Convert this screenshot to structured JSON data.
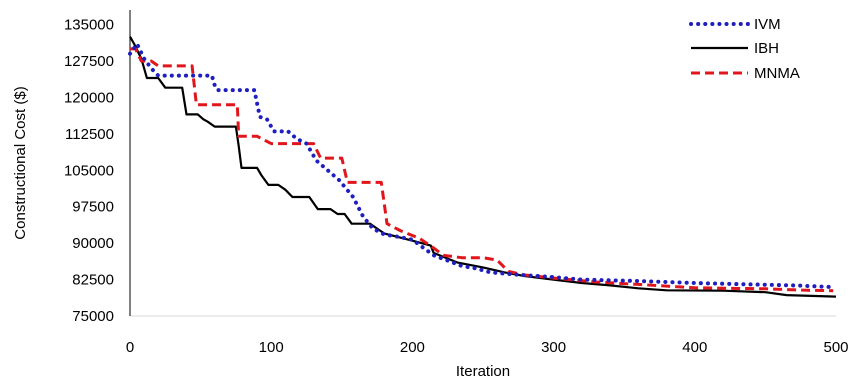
{
  "chart_data": {
    "type": "line",
    "title": "",
    "xlabel": "Iteration",
    "ylabel": "Constructional Cost ($)",
    "xlim": [
      0,
      500
    ],
    "ylim": [
      75000,
      138000
    ],
    "x_ticks": [
      0,
      100,
      200,
      300,
      400,
      500
    ],
    "y_ticks": [
      75000,
      82500,
      90000,
      97500,
      105000,
      112500,
      120000,
      127500,
      135000
    ],
    "x_tick_labels": [
      "0",
      "100",
      "200",
      "300",
      "400",
      "500"
    ],
    "y_tick_labels": [
      "75000",
      "82500",
      "90000",
      "97500",
      "105000",
      "112500",
      "120000",
      "127500",
      "135000"
    ],
    "grid": false,
    "legend_position": "top-right",
    "series": [
      {
        "name": "IVM",
        "color": "#1f1fbf",
        "style": "dotted",
        "points": [
          [
            0,
            129000
          ],
          [
            5,
            131000
          ],
          [
            10,
            128000
          ],
          [
            15,
            126000
          ],
          [
            20,
            124500
          ],
          [
            58,
            124500
          ],
          [
            60,
            122500
          ],
          [
            62,
            121500
          ],
          [
            88,
            121500
          ],
          [
            92,
            116000
          ],
          [
            97,
            115500
          ],
          [
            102,
            113000
          ],
          [
            112,
            113000
          ],
          [
            118,
            111500
          ],
          [
            125,
            110500
          ],
          [
            132,
            107000
          ],
          [
            140,
            105000
          ],
          [
            148,
            103000
          ],
          [
            158,
            99500
          ],
          [
            165,
            95500
          ],
          [
            172,
            93000
          ],
          [
            180,
            91800
          ],
          [
            190,
            91300
          ],
          [
            200,
            90700
          ],
          [
            215,
            87500
          ],
          [
            225,
            86400
          ],
          [
            235,
            85300
          ],
          [
            245,
            84800
          ],
          [
            255,
            84000
          ],
          [
            270,
            83600
          ],
          [
            285,
            83300
          ],
          [
            300,
            83000
          ],
          [
            320,
            82500
          ],
          [
            360,
            82200
          ],
          [
            400,
            81800
          ],
          [
            440,
            81500
          ],
          [
            470,
            81300
          ],
          [
            495,
            81000
          ]
        ]
      },
      {
        "name": "IBH",
        "color": "#000000",
        "style": "solid",
        "points": [
          [
            0,
            132500
          ],
          [
            3,
            131000
          ],
          [
            8,
            128000
          ],
          [
            12,
            124000
          ],
          [
            20,
            124000
          ],
          [
            25,
            122000
          ],
          [
            37,
            122000
          ],
          [
            40,
            116500
          ],
          [
            48,
            116500
          ],
          [
            52,
            115500
          ],
          [
            55,
            115000
          ],
          [
            60,
            114000
          ],
          [
            75,
            114000
          ],
          [
            77,
            110000
          ],
          [
            79,
            105500
          ],
          [
            90,
            105500
          ],
          [
            93,
            104000
          ],
          [
            98,
            102000
          ],
          [
            105,
            102000
          ],
          [
            110,
            101000
          ],
          [
            115,
            99500
          ],
          [
            127,
            99500
          ],
          [
            133,
            97000
          ],
          [
            142,
            97000
          ],
          [
            147,
            96000
          ],
          [
            152,
            96000
          ],
          [
            157,
            94000
          ],
          [
            170,
            94000
          ],
          [
            175,
            93000
          ],
          [
            180,
            92000
          ],
          [
            200,
            90500
          ],
          [
            213,
            89500
          ],
          [
            215,
            88000
          ],
          [
            232,
            86000
          ],
          [
            250,
            85000
          ],
          [
            265,
            84000
          ],
          [
            280,
            83200
          ],
          [
            300,
            82500
          ],
          [
            320,
            81800
          ],
          [
            340,
            81300
          ],
          [
            360,
            80700
          ],
          [
            380,
            80300
          ],
          [
            420,
            80200
          ],
          [
            450,
            79900
          ],
          [
            465,
            79300
          ],
          [
            500,
            79000
          ]
        ]
      },
      {
        "name": "MNMA",
        "color": "#e0161c",
        "style": "dashed",
        "points": [
          [
            0,
            130000
          ],
          [
            4,
            130000
          ],
          [
            8,
            127500
          ],
          [
            15,
            127500
          ],
          [
            20,
            126500
          ],
          [
            44,
            126500
          ],
          [
            47,
            118500
          ],
          [
            56,
            118500
          ],
          [
            76,
            118500
          ],
          [
            77,
            112000
          ],
          [
            90,
            112000
          ],
          [
            100,
            110500
          ],
          [
            130,
            110500
          ],
          [
            135,
            107500
          ],
          [
            150,
            107500
          ],
          [
            154,
            102500
          ],
          [
            178,
            102500
          ],
          [
            182,
            94000
          ],
          [
            192,
            92500
          ],
          [
            205,
            91000
          ],
          [
            215,
            89000
          ],
          [
            222,
            87500
          ],
          [
            235,
            87000
          ],
          [
            250,
            87000
          ],
          [
            260,
            86500
          ],
          [
            268,
            84200
          ],
          [
            278,
            83500
          ],
          [
            300,
            82800
          ],
          [
            330,
            82000
          ],
          [
            360,
            81500
          ],
          [
            400,
            80800
          ],
          [
            450,
            80600
          ],
          [
            480,
            80300
          ],
          [
            498,
            80200
          ]
        ]
      }
    ]
  }
}
